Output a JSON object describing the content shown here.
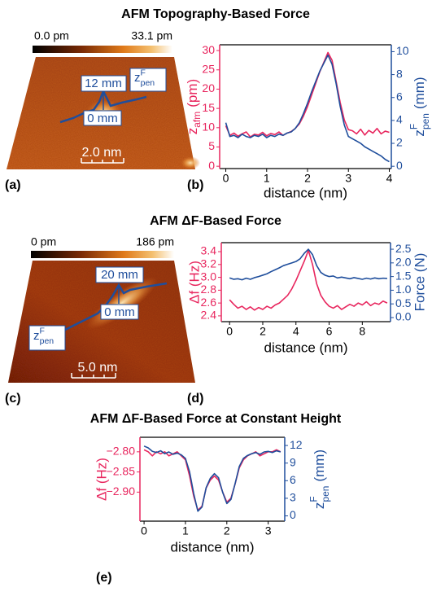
{
  "titles": [
    "AFM Topography-Based Force",
    "AFM ΔF-Based Force",
    "AFM ΔF-Based Force at Constant Height"
  ],
  "panel_labels": [
    "(a)",
    "(b)",
    "(c)",
    "(d)",
    "(e)"
  ],
  "images": [
    {
      "colorbar_min": "0.0 pm",
      "colorbar_max": "33.1 pm",
      "top_label": "12 mm",
      "bottom_label": "0 mm",
      "line_label": {
        "main": "z",
        "sup": "F",
        "sub": "pen"
      },
      "scalebar": "2.0 nm"
    },
    {
      "colorbar_min": "0 pm",
      "colorbar_max": "186 pm",
      "top_label": "20 mm",
      "bottom_label": "0 mm",
      "line_label": {
        "main": "z",
        "sup": "F",
        "sub": "pen"
      },
      "scalebar": "5.0 nm"
    }
  ],
  "chart_data": [
    {
      "type": "line",
      "xlabel": "distance (nm)",
      "ylabel": {
        "main": "z",
        "sub": "afm",
        "rest": "(pm)"
      },
      "y2label": {
        "main": "z",
        "sup": "F",
        "sub": "pen",
        "rest": "(mm)"
      },
      "xlim": [
        -0.15,
        4.05
      ],
      "xticks": [
        0,
        1,
        2,
        3,
        4
      ],
      "ylim": [
        -0.6,
        31.5
      ],
      "yticks": [
        0,
        5,
        10,
        15,
        20,
        25,
        30
      ],
      "y2lim": [
        -0.2,
        10.6
      ],
      "y2ticks": [
        0,
        2,
        4,
        6,
        8,
        10
      ],
      "x": [
        0,
        0.1,
        0.2,
        0.3,
        0.4,
        0.5,
        0.6,
        0.7,
        0.8,
        0.9,
        1,
        1.1,
        1.2,
        1.3,
        1.4,
        1.5,
        1.6,
        1.7,
        1.8,
        1.9,
        2,
        2.1,
        2.2,
        2.3,
        2.4,
        2.5,
        2.6,
        2.7,
        2.8,
        2.9,
        3,
        3.1,
        3.2,
        3.3,
        3.4,
        3.5,
        3.6,
        3.7,
        3.8,
        3.9,
        4
      ],
      "series": [
        {
          "color": "#e8265e",
          "axis": "y",
          "values": [
            10.5,
            8,
            8.6,
            7.8,
            8.4,
            8.9,
            7.6,
            8.3,
            8.1,
            8.8,
            7.9,
            8.5,
            8.2,
            8.9,
            8,
            8.6,
            9,
            9.8,
            11,
            13,
            15.5,
            18.5,
            21.5,
            24.5,
            27,
            29.5,
            27.5,
            22,
            16.5,
            12,
            9.5,
            9.2,
            8.4,
            9.6,
            8.1,
            9.3,
            8.6,
            9.8,
            8.4,
            9.1,
            8.8
          ]
        },
        {
          "color": "#1f4e9c",
          "axis": "y2",
          "values": [
            3.8,
            2.6,
            2.7,
            2.5,
            2.8,
            2.6,
            2.5,
            2.7,
            2.6,
            2.8,
            2.5,
            2.7,
            2.6,
            2.8,
            2.7,
            2.9,
            3,
            3.3,
            3.8,
            4.6,
            5.5,
            6.5,
            7.4,
            8.3,
            9,
            9.7,
            8.9,
            7.2,
            5.2,
            3.6,
            2.6,
            2.4,
            2.2,
            2,
            1.7,
            1.5,
            1.3,
            1.1,
            0.9,
            0.6,
            0.4
          ]
        }
      ]
    },
    {
      "type": "line",
      "xlabel": "distance (nm)",
      "ylabel": "Δf (Hz)",
      "y2label": "Force (N)",
      "xlim": [
        -0.5,
        9.7
      ],
      "xticks": [
        0,
        2,
        4,
        6,
        8
      ],
      "ylim": [
        2.31,
        3.54
      ],
      "yticks": [
        2.4,
        2.6,
        2.8,
        {
          "value": 3,
          "label": "3.0"
        },
        3.2,
        3.4
      ],
      "y2lim": [
        -0.15,
        2.74
      ],
      "y2ticks": [
        {
          "value": 0,
          "label": "0.0"
        },
        0.5,
        {
          "value": 1,
          "label": "1.0"
        },
        1.5,
        {
          "value": 2,
          "label": "2.0"
        },
        2.5
      ],
      "x": [
        0,
        0.25,
        0.5,
        0.75,
        1,
        1.25,
        1.5,
        1.75,
        2,
        2.25,
        2.5,
        2.75,
        3,
        3.25,
        3.5,
        3.75,
        4,
        4.25,
        4.5,
        4.75,
        5,
        5.25,
        5.5,
        5.75,
        6,
        6.25,
        6.5,
        6.75,
        7,
        7.25,
        7.5,
        7.75,
        8,
        8.25,
        8.5,
        8.75,
        9,
        9.25,
        9.5
      ],
      "series": [
        {
          "color": "#e8265e",
          "axis": "y",
          "values": [
            2.65,
            2.58,
            2.52,
            2.55,
            2.5,
            2.54,
            2.49,
            2.53,
            2.5,
            2.55,
            2.52,
            2.57,
            2.6,
            2.66,
            2.72,
            2.82,
            2.95,
            3.1,
            3.25,
            3.42,
            3.2,
            2.9,
            2.72,
            2.62,
            2.55,
            2.52,
            2.56,
            2.5,
            2.54,
            2.58,
            2.55,
            2.6,
            2.57,
            2.62,
            2.56,
            2.6,
            2.58,
            2.63,
            2.6
          ]
        },
        {
          "color": "#1f4e9c",
          "axis": "y2",
          "values": [
            1.45,
            1.4,
            1.42,
            1.38,
            1.44,
            1.4,
            1.46,
            1.5,
            1.55,
            1.6,
            1.68,
            1.75,
            1.82,
            1.9,
            1.95,
            2,
            2.05,
            2.15,
            2.35,
            2.5,
            2.3,
            1.9,
            1.65,
            1.55,
            1.5,
            1.52,
            1.45,
            1.48,
            1.45,
            1.42,
            1.46,
            1.43,
            1.4,
            1.44,
            1.41,
            1.45,
            1.42,
            1.44,
            1.43
          ]
        }
      ]
    },
    {
      "type": "line",
      "xlabel": "distance (nm)",
      "ylabel": "Δf (Hz)",
      "y2label": {
        "main": "z",
        "sup": "F",
        "sub": "pen",
        "rest": "(mm)"
      },
      "xlim": [
        -0.1,
        3.4
      ],
      "xticks": [
        0,
        1,
        2,
        3
      ],
      "ylim": [
        -2.972,
        -2.764
      ],
      "yticks": [
        {
          "value": -2.8,
          "label": "−2.80"
        },
        {
          "value": -2.85,
          "label": "−2.85"
        },
        {
          "value": -2.9,
          "label": "−2.90"
        }
      ],
      "y2lim": [
        -0.9,
        13.4
      ],
      "y2ticks": [
        0,
        3,
        6,
        9,
        12
      ],
      "x": [
        0,
        0.1,
        0.2,
        0.3,
        0.4,
        0.5,
        0.6,
        0.7,
        0.8,
        0.9,
        1,
        1.1,
        1.2,
        1.3,
        1.4,
        1.5,
        1.6,
        1.7,
        1.8,
        1.9,
        2,
        2.1,
        2.2,
        2.3,
        2.4,
        2.5,
        2.6,
        2.7,
        2.8,
        2.9,
        3,
        3.1,
        3.2,
        3.3
      ],
      "series": [
        {
          "color": "#e8265e",
          "axis": "y",
          "values": [
            -2.795,
            -2.8,
            -2.81,
            -2.8,
            -2.805,
            -2.8,
            -2.81,
            -2.805,
            -2.8,
            -2.81,
            -2.82,
            -2.86,
            -2.91,
            -2.945,
            -2.935,
            -2.89,
            -2.87,
            -2.86,
            -2.87,
            -2.9,
            -2.925,
            -2.915,
            -2.88,
            -2.84,
            -2.82,
            -2.81,
            -2.805,
            -2.8,
            -2.81,
            -2.805,
            -2.8,
            -2.8,
            -2.795,
            -2.8
          ]
        },
        {
          "color": "#1f4e9c",
          "axis": "y2",
          "values": [
            11.9,
            11.6,
            11,
            10.8,
            11.1,
            10.6,
            10.9,
            10.5,
            10.7,
            10.4,
            9.8,
            7.5,
            3.8,
            0.8,
            1.5,
            4.8,
            6.4,
            7.2,
            6.5,
            4,
            2.1,
            2.8,
            5.5,
            8.4,
            9.8,
            10.3,
            10.6,
            10.8,
            10.5,
            10.9,
            11,
            10.8,
            11.1,
            10.9
          ]
        }
      ]
    }
  ]
}
